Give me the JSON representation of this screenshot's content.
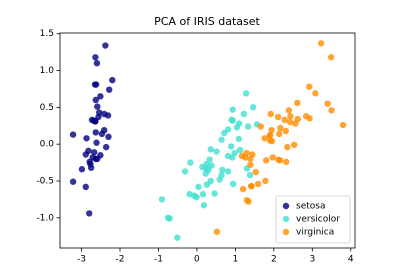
{
  "chart_data": {
    "type": "scatter",
    "title": "PCA of IRIS dataset",
    "xlim": [
      -3.56,
      4.11
    ],
    "ylim": [
      -1.41,
      1.51
    ],
    "xticks": [
      -3,
      -2,
      -1,
      0,
      1,
      2,
      3,
      4
    ],
    "yticks": [
      {
        "value": -1,
        "label": "-1.0"
      },
      -0.5,
      {
        "value": 0,
        "label": "0.0"
      },
      0.5,
      {
        "value": 1,
        "label": "1.0"
      },
      1.5
    ],
    "legend": "lower right",
    "series": [
      {
        "name": "setosa",
        "color": "#000080",
        "x": [
          -2.68,
          -2.71,
          -2.89,
          -2.75,
          -2.73,
          -2.28,
          -2.82,
          -2.63,
          -2.89,
          -2.67,
          -2.51,
          -2.61,
          -2.79,
          -3.22,
          -2.64,
          -2.38,
          -2.62,
          -2.65,
          -2.2,
          -2.59,
          -2.31,
          -2.54,
          -3.22,
          -2.3,
          -2.36,
          -2.51,
          -2.47,
          -2.56,
          -2.64,
          -2.63,
          -2.59,
          -2.41,
          -2.65,
          -2.6,
          -2.87,
          -2.63,
          -2.8,
          -2.99,
          -2.41,
          -2.77
        ],
        "y": [
          0.32,
          -0.18,
          -0.14,
          -0.32,
          0.33,
          0.74,
          -0.09,
          0.16,
          -0.58,
          -0.11,
          0.65,
          0.02,
          -0.24,
          -0.51,
          1.18,
          1.34,
          0.81,
          0.31,
          0.87,
          0.51,
          0.39,
          0.43,
          0.13,
          0.1,
          -0.04,
          -0.15,
          0.14,
          0.37,
          0.31,
          -0.2,
          -0.2,
          0.41,
          0.81,
          1.1,
          0.08,
          0.6,
          -0.94,
          -0.34,
          0.19,
          -0.27
        ]
      },
      {
        "name": "versicolor",
        "color": "#40e0d0",
        "x": [
          1.28,
          0.93,
          1.46,
          0.18,
          1.09,
          0.64,
          1.1,
          -0.75,
          1.04,
          -0.01,
          -0.51,
          0.51,
          0.26,
          0.98,
          -0.17,
          0.93,
          0.66,
          0.23,
          0.94,
          0.04,
          1.12,
          0.36,
          1.3,
          0.92,
          0.71,
          0.9,
          1.33,
          1.56,
          0.81,
          -0.31,
          -0.07,
          -0.19,
          0.14,
          1.38,
          0.59,
          0.81,
          1.22,
          0.81,
          0.25,
          0.16,
          0.46,
          0.89,
          0.23,
          -0.71,
          0.36,
          0.33,
          0.38,
          0.64,
          -0.91,
          0.3
        ],
        "y": [
          0.69,
          0.32,
          0.5,
          -0.83,
          0.07,
          -0.42,
          0.28,
          -1.0,
          0.23,
          -0.72,
          -1.27,
          -0.1,
          -0.55,
          -0.12,
          -0.25,
          0.47,
          -0.35,
          -0.33,
          -0.54,
          -0.58,
          -0.08,
          -0.07,
          -0.33,
          -0.18,
          0.15,
          0.33,
          0.24,
          0.27,
          -0.16,
          -0.37,
          -0.7,
          -0.68,
          -0.31,
          -0.42,
          -0.48,
          0.2,
          0.41,
          -0.37,
          -0.27,
          -0.68,
          -0.67,
          -0.03,
          -0.4,
          -1.01,
          -0.5,
          -0.21,
          -0.29,
          0.06,
          -0.75,
          -0.35
        ]
      },
      {
        "name": "virginica",
        "color": "#ff8c00",
        "x": [
          2.53,
          1.41,
          2.62,
          1.97,
          2.35,
          3.4,
          0.52,
          2.93,
          2.32,
          2.92,
          1.66,
          1.8,
          2.17,
          1.34,
          1.59,
          1.9,
          1.95,
          3.49,
          3.8,
          1.3,
          2.43,
          1.2,
          3.5,
          1.39,
          2.28,
          2.61,
          1.26,
          1.29,
          2.12,
          2.39,
          2.84,
          3.23,
          2.16,
          1.44,
          1.78,
          3.08,
          2.14,
          1.9,
          1.17,
          2.11,
          2.31,
          1.92,
          1.42,
          2.56,
          2.42,
          1.94,
          1.53,
          1.76,
          1.9,
          1.39
        ],
        "y": [
          -0.01,
          -0.57,
          0.34,
          -0.18,
          -0.04,
          0.55,
          -1.19,
          0.35,
          -0.24,
          0.78,
          0.24,
          -0.22,
          0.22,
          -0.78,
          -0.54,
          0.12,
          0.04,
          1.18,
          0.26,
          -0.76,
          0.38,
          -0.61,
          0.46,
          -0.2,
          0.33,
          0.56,
          -0.18,
          -0.12,
          -0.21,
          0.46,
          0.38,
          1.37,
          -0.22,
          -0.14,
          -0.5,
          0.69,
          0.14,
          0.05,
          -0.16,
          0.37,
          0.18,
          0.41,
          -0.57,
          0.28,
          0.3,
          0.19,
          -0.38,
          0.08,
          0.12,
          -0.28
        ]
      }
    ]
  }
}
